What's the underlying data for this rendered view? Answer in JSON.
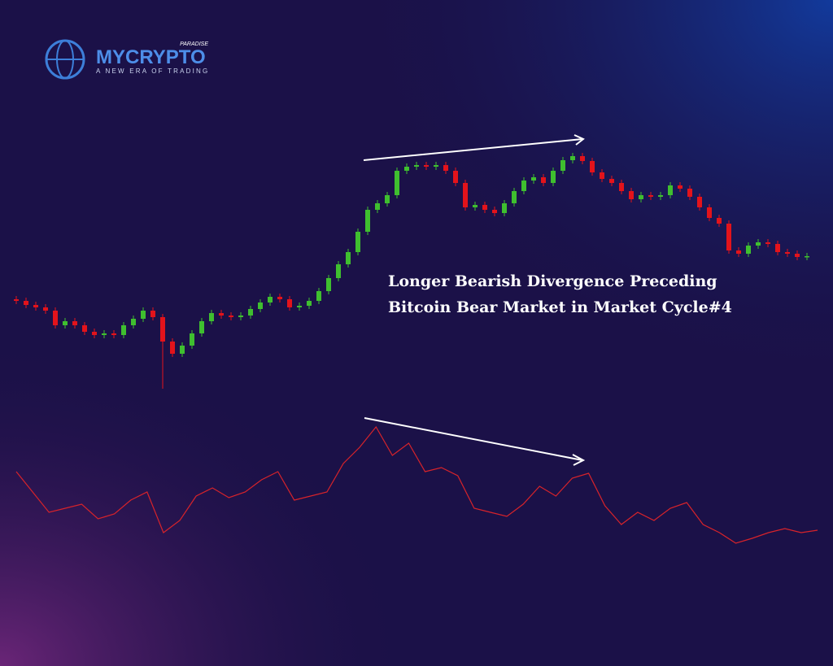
{
  "logo": {
    "brand": "MYCRYPTO",
    "badge": "PARADISE",
    "tagline": "A NEW ERA OF TRADING"
  },
  "chart_data": [
    {
      "type": "candlestick",
      "annotation": [
        "Longer Bearish Divergence Preceding",
        "Bitcoin Bear Market in Market Cycle#4"
      ],
      "up_color": "#3fbf2f",
      "down_color": "#e3131b",
      "ylim": [
        20,
        320
      ],
      "open": [
        132,
        130,
        125,
        122,
        118,
        100,
        105,
        100,
        92,
        88,
        90,
        88,
        100,
        108,
        118,
        110,
        80,
        65,
        75,
        90,
        105,
        115,
        112,
        110,
        112,
        120,
        128,
        135,
        132,
        122,
        124,
        130,
        142,
        158,
        175,
        190,
        215,
        242,
        250,
        260,
        290,
        295,
        297,
        295,
        297,
        290,
        275,
        245,
        248,
        242,
        238,
        250,
        265,
        278,
        282,
        275,
        290,
        303,
        308,
        302,
        288,
        280,
        275,
        265,
        255,
        260,
        258,
        260,
        272,
        268,
        258,
        245,
        232,
        225,
        192,
        188,
        198,
        202,
        200,
        190,
        188,
        184
      ],
      "high": [
        136,
        134,
        129,
        126,
        122,
        109,
        109,
        104,
        96,
        94,
        94,
        104,
        112,
        122,
        122,
        114,
        84,
        79,
        94,
        109,
        119,
        119,
        116,
        116,
        124,
        132,
        139,
        139,
        136,
        128,
        134,
        146,
        162,
        179,
        194,
        219,
        246,
        254,
        264,
        294,
        299,
        301,
        301,
        301,
        301,
        294,
        279,
        252,
        252,
        246,
        254,
        269,
        282,
        286,
        286,
        294,
        307,
        312,
        312,
        306,
        292,
        284,
        279,
        269,
        264,
        264,
        264,
        276,
        276,
        272,
        262,
        249,
        236,
        229,
        196,
        202,
        206,
        206,
        204,
        194,
        192,
        189
      ],
      "low": [
        126,
        121,
        118,
        114,
        96,
        96,
        96,
        88,
        84,
        84,
        84,
        84,
        96,
        104,
        106,
        22,
        61,
        61,
        71,
        86,
        101,
        108,
        106,
        106,
        108,
        116,
        124,
        128,
        118,
        118,
        120,
        126,
        138,
        154,
        171,
        186,
        211,
        238,
        246,
        256,
        286,
        291,
        291,
        291,
        286,
        271,
        241,
        241,
        238,
        234,
        234,
        246,
        261,
        274,
        271,
        271,
        286,
        299,
        298,
        284,
        276,
        271,
        261,
        251,
        251,
        254,
        254,
        256,
        264,
        254,
        241,
        228,
        221,
        188,
        184,
        184,
        194,
        196,
        186,
        184,
        180,
        180
      ],
      "close": [
        130,
        125,
        122,
        118,
        100,
        105,
        100,
        92,
        88,
        90,
        88,
        100,
        108,
        118,
        110,
        80,
        65,
        75,
        90,
        105,
        115,
        112,
        110,
        112,
        120,
        128,
        135,
        132,
        122,
        124,
        130,
        142,
        158,
        175,
        190,
        215,
        242,
        250,
        260,
        290,
        295,
        297,
        295,
        297,
        290,
        275,
        245,
        248,
        242,
        238,
        250,
        265,
        278,
        282,
        275,
        290,
        303,
        308,
        302,
        288,
        280,
        275,
        265,
        255,
        260,
        258,
        260,
        272,
        268,
        258,
        245,
        232,
        225,
        192,
        188,
        198,
        202,
        200,
        190,
        188,
        184,
        185
      ]
    },
    {
      "type": "line",
      "color": "#d8232a",
      "ylim": [
        20,
        200
      ],
      "values": [
        120,
        95,
        70,
        75,
        80,
        62,
        68,
        85,
        95,
        45,
        60,
        90,
        100,
        88,
        95,
        110,
        120,
        85,
        90,
        95,
        130,
        150,
        175,
        140,
        155,
        120,
        125,
        115,
        75,
        70,
        65,
        80,
        102,
        90,
        112,
        118,
        78,
        55,
        70,
        60,
        75,
        82,
        55,
        45,
        32,
        38,
        45,
        50,
        45,
        48
      ]
    }
  ]
}
